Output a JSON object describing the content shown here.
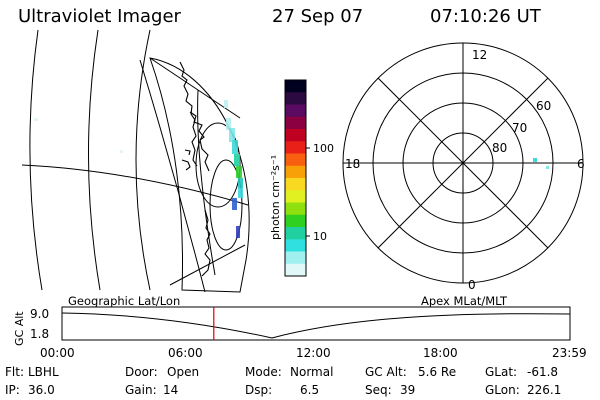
{
  "header": {
    "instrument": "Ultraviolet Imager",
    "date": "27 Sep 07",
    "time": "07:10:26 UT"
  },
  "geo_panel": {
    "caption": "Geographic Lat/Lon"
  },
  "colorbar": {
    "unit_label": "photon cm⁻²s⁻¹",
    "ticks": [
      "100",
      "10"
    ],
    "colors": [
      "#000020",
      "#2a0a40",
      "#5a0a60",
      "#8a0040",
      "#c00020",
      "#e82018",
      "#f86010",
      "#f8a008",
      "#f8d820",
      "#e0f020",
      "#90e010",
      "#30d020",
      "#20d0a0",
      "#30e0e0",
      "#a0f0f0",
      "#e0f8f8"
    ]
  },
  "polar_panel": {
    "caption": "Apex MLat/MLT",
    "lat_labels": [
      "60",
      "70",
      "80"
    ],
    "mlt_labels": {
      "top": "12",
      "bottom": "0",
      "left": "18",
      "right": "6"
    }
  },
  "altitude_plot": {
    "axis_label": "GC Alt",
    "y_ticks": [
      "9.0",
      "1.8"
    ],
    "x_ticks": [
      "00:00",
      "06:00",
      "12:00",
      "18:00",
      "23:59"
    ],
    "current_time_hours": 7.17
  },
  "status": {
    "filter": {
      "label": "Flt:",
      "value": "LBHL"
    },
    "ip": {
      "label": "IP:",
      "value": "36.0"
    },
    "door": {
      "label": "Door:",
      "value": "Open"
    },
    "gain": {
      "label": "Gain:",
      "value": "14"
    },
    "mode": {
      "label": "Mode:",
      "value": "Normal"
    },
    "dsp": {
      "label": "Dsp:",
      "value": "6.5"
    },
    "gc_alt": {
      "label": "GC Alt:",
      "value": "5.6 Re"
    },
    "seq": {
      "label": "Seq:",
      "value": "39"
    },
    "glat": {
      "label": "GLat:",
      "value": "-61.8"
    },
    "glon": {
      "label": "GLon:",
      "value": "226.1"
    }
  }
}
